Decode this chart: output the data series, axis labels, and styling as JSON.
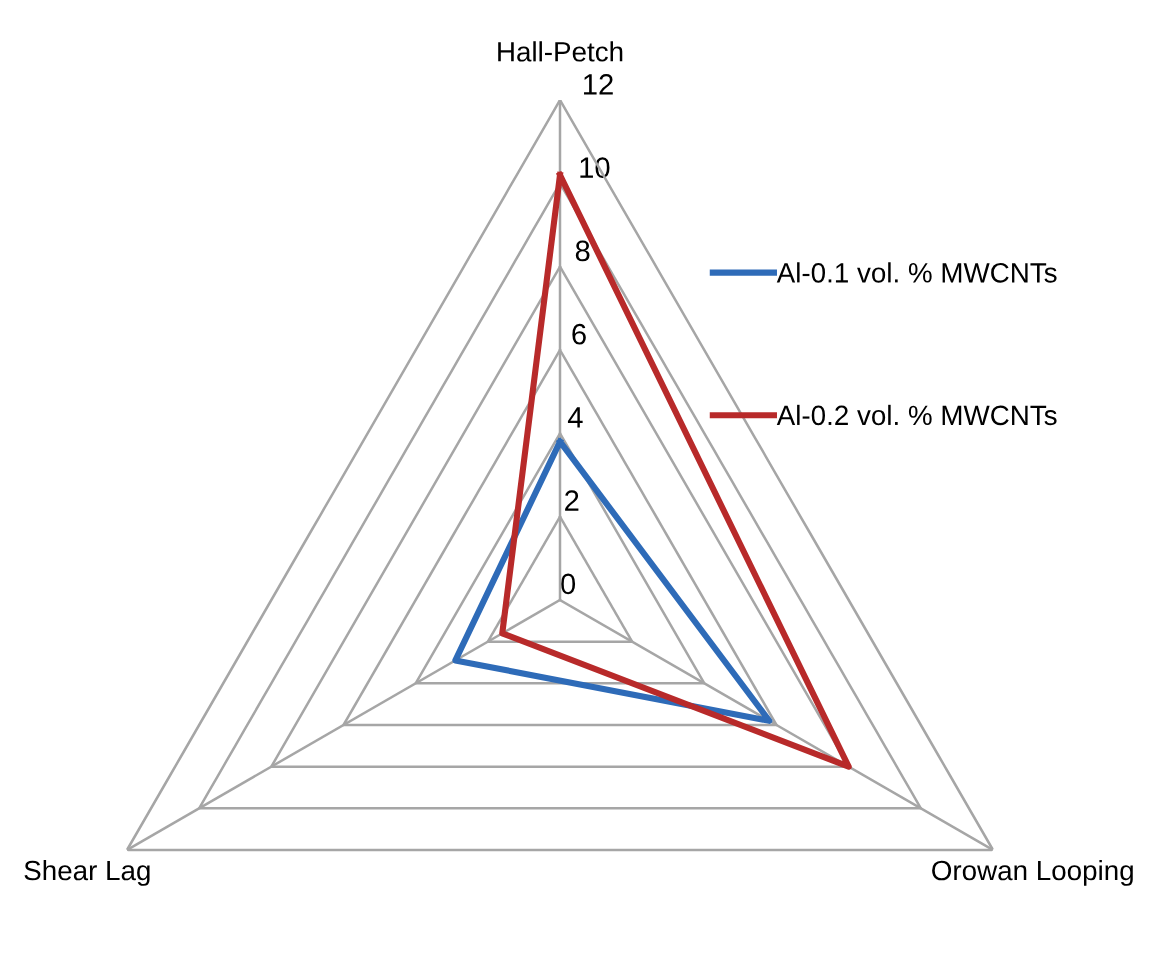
{
  "chart_data": {
    "type": "radar",
    "categories": [
      "Hall-Petch",
      "Orowan Looping",
      "Shear Lag"
    ],
    "series": [
      {
        "name": "Al-0.1 vol. % MWCNTs",
        "color": "#2e6bb8",
        "values": [
          3.8,
          5.8,
          2.9
        ]
      },
      {
        "name": "Al-0.2 vol. % MWCNTs",
        "color": "#b82a2a",
        "values": [
          10.2,
          8.0,
          1.6
        ]
      }
    ],
    "ylim": [
      0,
      12
    ],
    "yticks": [
      0,
      2,
      4,
      6,
      8,
      10,
      12
    ],
    "grid": true,
    "legend": "right",
    "marker": "none",
    "line_style": "solid"
  }
}
